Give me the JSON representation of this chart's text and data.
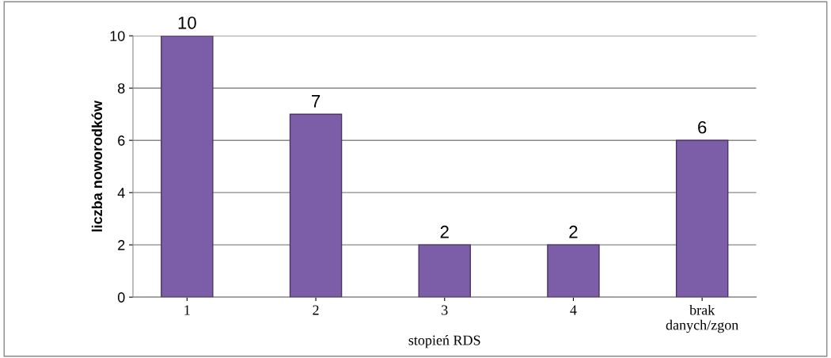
{
  "chart_data": {
    "type": "bar",
    "xlabel": "stopień RDS",
    "ylabel": "liczba noworodków",
    "categories": [
      "1",
      "2",
      "3",
      "4",
      "brak\ndanych/zgon"
    ],
    "values": [
      10,
      7,
      2,
      2,
      6
    ],
    "color": "#7b5ea7",
    "ylim": [
      0,
      10
    ],
    "yticks": [
      0,
      2,
      4,
      6,
      8,
      10
    ],
    "grid": "y",
    "data_labels": true
  }
}
